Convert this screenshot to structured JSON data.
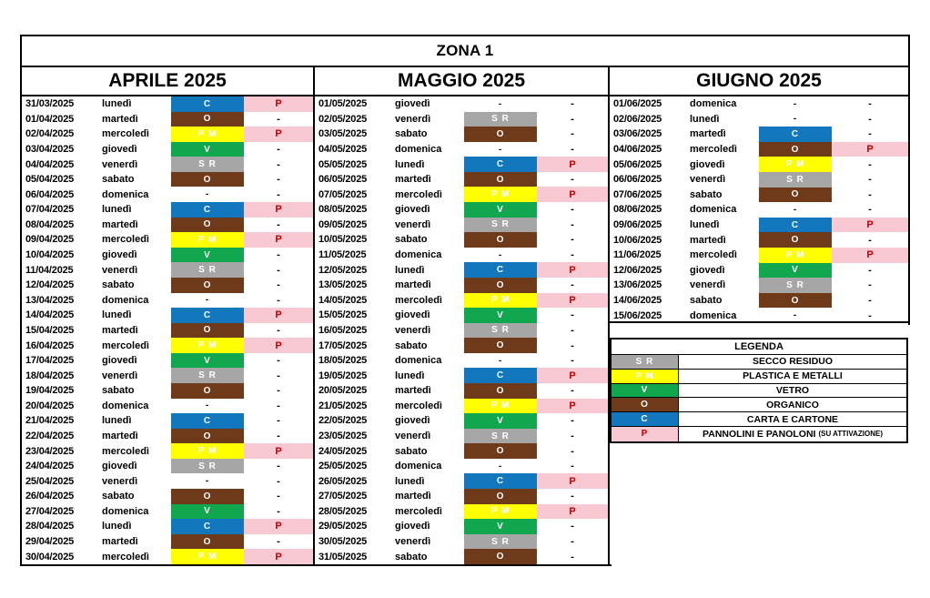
{
  "page": {
    "title": "ZONA 1"
  },
  "colors": {
    "border": "#000000",
    "carta_blue": "#1277BD",
    "organico_brown": "#6F3A19",
    "plastica_yellow": "#FFFF00",
    "vetro_green": "#10A74F",
    "secco_gray": "#A6A6A6",
    "pannolini_pink": "#F8C9D3",
    "pannolini_red": "#C00000"
  },
  "badges": {
    "C": {
      "label": "C",
      "bg": "#1277BD",
      "fg": "#FFFFFF"
    },
    "O": {
      "label": "O",
      "bg": "#6F3A19",
      "fg": "#FFFFFF"
    },
    "PM": {
      "label": "P M",
      "bg": "#FFFF00",
      "fg": "#FFFFFF"
    },
    "V": {
      "label": "V",
      "bg": "#10A74F",
      "fg": "#FFFFFF"
    },
    "SR": {
      "label": "S R",
      "bg": "#A6A6A6",
      "fg": "#FFFFFF"
    },
    "P": {
      "label": "P",
      "bg": "#F8C9D3",
      "fg": "#C00000"
    }
  },
  "empty_mark": "-",
  "months": [
    {
      "name": "APRILE 2025",
      "rows": [
        [
          "31/03/2025",
          "lunedì",
          "C",
          "P"
        ],
        [
          "01/04/2025",
          "martedì",
          "O",
          "-"
        ],
        [
          "02/04/2025",
          "mercoledì",
          "PM",
          "P"
        ],
        [
          "03/04/2025",
          "giovedì",
          "V",
          "-"
        ],
        [
          "04/04/2025",
          "venerdì",
          "SR",
          "-"
        ],
        [
          "05/04/2025",
          "sabato",
          "O",
          "-"
        ],
        [
          "06/04/2025",
          "domenica",
          "-",
          "-"
        ],
        [
          "07/04/2025",
          "lunedì",
          "C",
          "P"
        ],
        [
          "08/04/2025",
          "martedì",
          "O",
          "-"
        ],
        [
          "09/04/2025",
          "mercoledì",
          "PM",
          "P"
        ],
        [
          "10/04/2025",
          "giovedì",
          "V",
          "-"
        ],
        [
          "11/04/2025",
          "venerdì",
          "SR",
          "-"
        ],
        [
          "12/04/2025",
          "sabato",
          "O",
          "-"
        ],
        [
          "13/04/2025",
          "domenica",
          "-",
          "-"
        ],
        [
          "14/04/2025",
          "lunedì",
          "C",
          "P"
        ],
        [
          "15/04/2025",
          "martedì",
          "O",
          "-"
        ],
        [
          "16/04/2025",
          "mercoledì",
          "PM",
          "P"
        ],
        [
          "17/04/2025",
          "giovedì",
          "V",
          "-"
        ],
        [
          "18/04/2025",
          "venerdì",
          "SR",
          "-"
        ],
        [
          "19/04/2025",
          "sabato",
          "O",
          "-"
        ],
        [
          "20/04/2025",
          "domenica",
          "-",
          "-"
        ],
        [
          "21/04/2025",
          "lunedì",
          "C",
          "-"
        ],
        [
          "22/04/2025",
          "martedì",
          "O",
          "-"
        ],
        [
          "23/04/2025",
          "mercoledì",
          "PM",
          "P"
        ],
        [
          "24/04/2025",
          "giovedì",
          "SR",
          "-"
        ],
        [
          "25/04/2025",
          "venerdì",
          "-",
          "-"
        ],
        [
          "26/04/2025",
          "sabato",
          "O",
          "-"
        ],
        [
          "27/04/2025",
          "domenica",
          "V",
          "-"
        ],
        [
          "28/04/2025",
          "lunedì",
          "C",
          "P"
        ],
        [
          "29/04/2025",
          "martedì",
          "O",
          "-"
        ],
        [
          "30/04/2025",
          "mercoledì",
          "PM",
          "P"
        ]
      ]
    },
    {
      "name": "MAGGIO 2025",
      "rows": [
        [
          "01/05/2025",
          "giovedì",
          "-",
          "-"
        ],
        [
          "02/05/2025",
          "venerdì",
          "SR",
          "-"
        ],
        [
          "03/05/2025",
          "sabato",
          "O",
          "-"
        ],
        [
          "04/05/2025",
          "domenica",
          "-",
          "-"
        ],
        [
          "05/05/2025",
          "lunedì",
          "C",
          "P"
        ],
        [
          "06/05/2025",
          "martedì",
          "O",
          "-"
        ],
        [
          "07/05/2025",
          "mercoledì",
          "PM",
          "P"
        ],
        [
          "08/05/2025",
          "giovedì",
          "V",
          "-"
        ],
        [
          "09/05/2025",
          "venerdì",
          "SR",
          "-"
        ],
        [
          "10/05/2025",
          "sabato",
          "O",
          "-"
        ],
        [
          "11/05/2025",
          "domenica",
          "-",
          "-"
        ],
        [
          "12/05/2025",
          "lunedì",
          "C",
          "P"
        ],
        [
          "13/05/2025",
          "martedì",
          "O",
          "-"
        ],
        [
          "14/05/2025",
          "mercoledì",
          "PM",
          "P"
        ],
        [
          "15/05/2025",
          "giovedì",
          "V",
          "-"
        ],
        [
          "16/05/2025",
          "venerdì",
          "SR",
          "-"
        ],
        [
          "17/05/2025",
          "sabato",
          "O",
          "-"
        ],
        [
          "18/05/2025",
          "domenica",
          "-",
          "-"
        ],
        [
          "19/05/2025",
          "lunedì",
          "C",
          "P"
        ],
        [
          "20/05/2025",
          "martedì",
          "O",
          "-"
        ],
        [
          "21/05/2025",
          "mercoledì",
          "PM",
          "P"
        ],
        [
          "22/05/2025",
          "giovedì",
          "V",
          "-"
        ],
        [
          "23/05/2025",
          "venerdì",
          "SR",
          "-"
        ],
        [
          "24/05/2025",
          "sabato",
          "O",
          "-"
        ],
        [
          "25/05/2025",
          "domenica",
          "-",
          "-"
        ],
        [
          "26/05/2025",
          "lunedì",
          "C",
          "P"
        ],
        [
          "27/05/2025",
          "martedì",
          "O",
          "-"
        ],
        [
          "28/05/2025",
          "mercoledì",
          "PM",
          "P"
        ],
        [
          "29/05/2025",
          "giovedì",
          "V",
          "-"
        ],
        [
          "30/05/2025",
          "venerdì",
          "SR",
          "-"
        ],
        [
          "31/05/2025",
          "sabato",
          "O",
          "-"
        ]
      ]
    },
    {
      "name": "GIUGNO 2025",
      "rows": [
        [
          "01/06/2025",
          "domenica",
          "-",
          "-"
        ],
        [
          "02/06/2025",
          "lunedì",
          "-",
          "-"
        ],
        [
          "03/06/2025",
          "martedì",
          "C",
          "-"
        ],
        [
          "04/06/2025",
          "mercoledì",
          "O",
          "P"
        ],
        [
          "05/06/2025",
          "giovedì",
          "PM",
          "-"
        ],
        [
          "06/06/2025",
          "venerdì",
          "SR",
          "-"
        ],
        [
          "07/06/2025",
          "sabato",
          "O",
          "-"
        ],
        [
          "08/06/2025",
          "domenica",
          "-",
          "-"
        ],
        [
          "09/06/2025",
          "lunedì",
          "C",
          "P"
        ],
        [
          "10/06/2025",
          "martedì",
          "O",
          "-"
        ],
        [
          "11/06/2025",
          "mercoledì",
          "PM",
          "P"
        ],
        [
          "12/06/2025",
          "giovedì",
          "V",
          "-"
        ],
        [
          "13/06/2025",
          "venerdì",
          "SR",
          "-"
        ],
        [
          "14/06/2025",
          "sabato",
          "O",
          "-"
        ],
        [
          "15/06/2025",
          "domenica",
          "-",
          "-"
        ]
      ]
    }
  ],
  "legend": {
    "title": "LEGENDA",
    "entries": [
      {
        "code": "SR",
        "label": "SECCO RESIDUO",
        "suffix": ""
      },
      {
        "code": "PM",
        "label": "PLASTICA E METALLI",
        "suffix": ""
      },
      {
        "code": "V",
        "label": "VETRO",
        "suffix": ""
      },
      {
        "code": "O",
        "label": "ORGANICO",
        "suffix": ""
      },
      {
        "code": "C",
        "label": "CARTA E CARTONE",
        "suffix": ""
      },
      {
        "code": "P",
        "label": "PANNOLINI E PANOLONI",
        "suffix": "(SU ATTIVAZIONE)"
      }
    ]
  }
}
